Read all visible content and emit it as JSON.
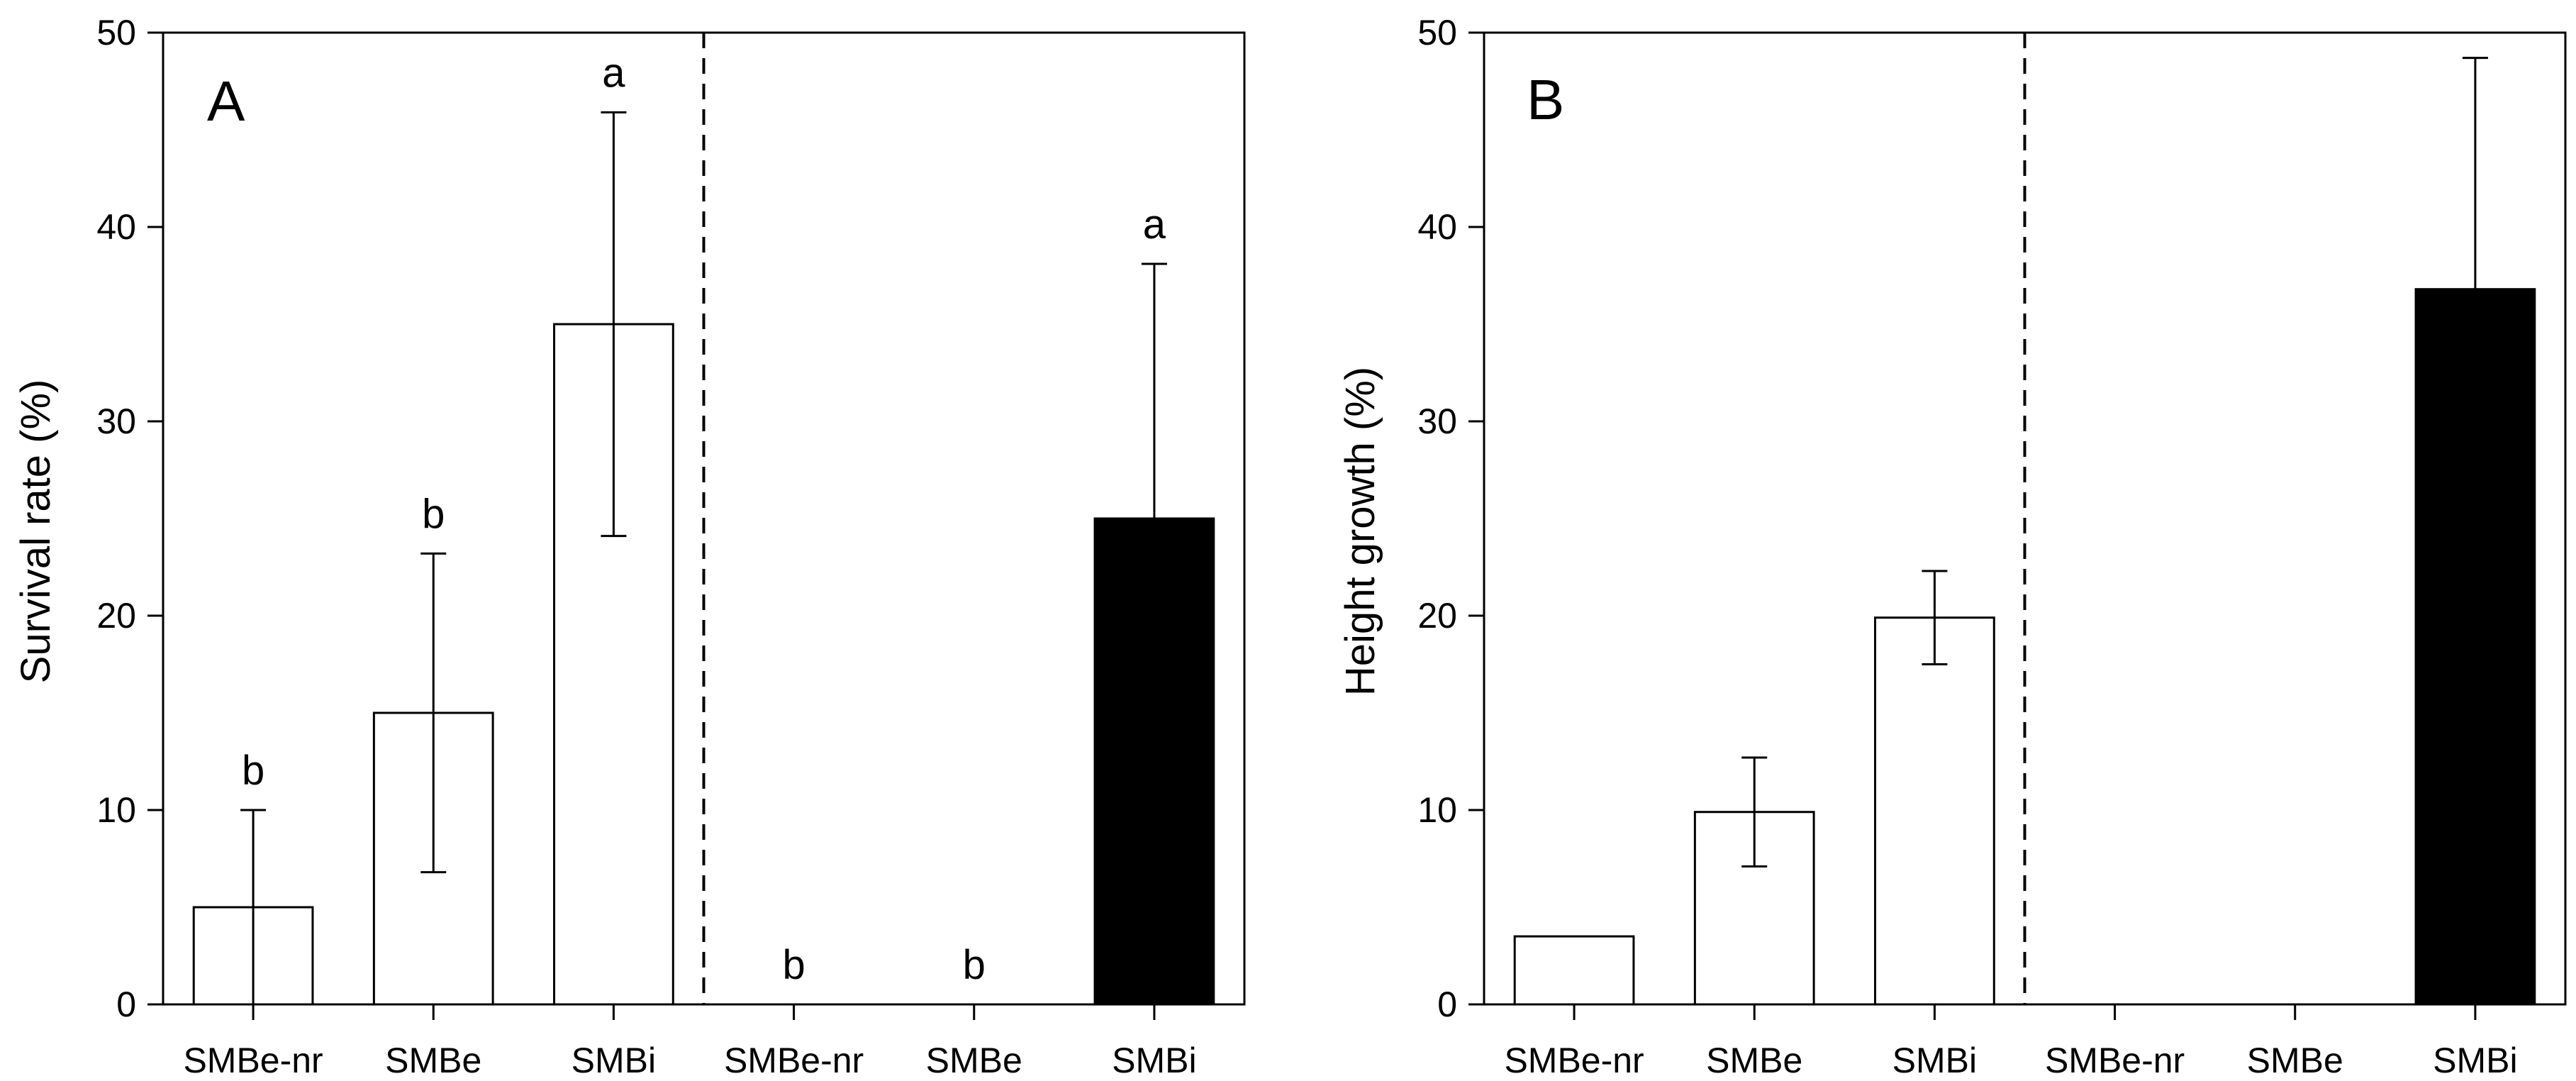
{
  "chart_data": [
    {
      "type": "bar",
      "panel_label": "A",
      "ylabel": "Survival rate (%)",
      "xlabel": "",
      "ylim": [
        0,
        50
      ],
      "yticks": [
        0,
        10,
        20,
        30,
        40,
        50
      ],
      "categories": [
        "SMBe-nr",
        "SMBe",
        "SMBi",
        "SMBe-nr",
        "SMBe",
        "SMBi"
      ],
      "values": [
        5,
        15,
        35,
        0,
        0,
        25
      ],
      "errors_upper": [
        10,
        23.2,
        45.9,
        null,
        null,
        38.1
      ],
      "errors_lower": [
        0,
        6.8,
        24.1,
        null,
        null,
        null
      ],
      "letters": [
        "b",
        "b",
        "a",
        "b",
        "b",
        "a"
      ],
      "fills": [
        "#ffffff",
        "#ffffff",
        "#ffffff",
        "#ffffff",
        "#ffffff",
        "#000000"
      ],
      "divider_after_index": 2
    },
    {
      "type": "bar",
      "panel_label": "B",
      "ylabel": "Height growth  (%)",
      "xlabel": "",
      "ylim": [
        0,
        50
      ],
      "yticks": [
        0,
        10,
        20,
        30,
        40,
        50
      ],
      "categories": [
        "SMBe-nr",
        "SMBe",
        "SMBi",
        "SMBe-nr",
        "SMBe",
        "SMBi"
      ],
      "values": [
        3.5,
        9.9,
        19.9,
        0,
        0,
        36.8
      ],
      "errors_upper": [
        null,
        12.7,
        22.3,
        null,
        null,
        48.7
      ],
      "errors_lower": [
        null,
        7.1,
        17.5,
        null,
        null,
        null
      ],
      "letters": [
        "",
        "",
        "",
        "",
        "",
        ""
      ],
      "fills": [
        "#ffffff",
        "#ffffff",
        "#ffffff",
        "#ffffff",
        "#ffffff",
        "#000000"
      ],
      "divider_after_index": 2
    }
  ]
}
